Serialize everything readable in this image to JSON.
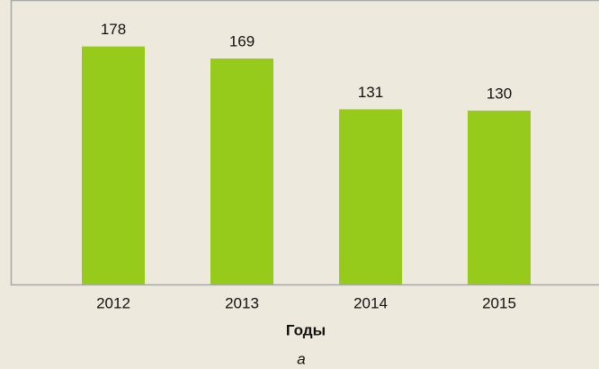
{
  "chart_data": {
    "type": "bar",
    "categories": [
      "2012",
      "2013",
      "2014",
      "2015"
    ],
    "values": [
      178,
      169,
      131,
      130
    ],
    "color": "#97cb1b",
    "xlabel": "Годы",
    "caption": "а"
  }
}
